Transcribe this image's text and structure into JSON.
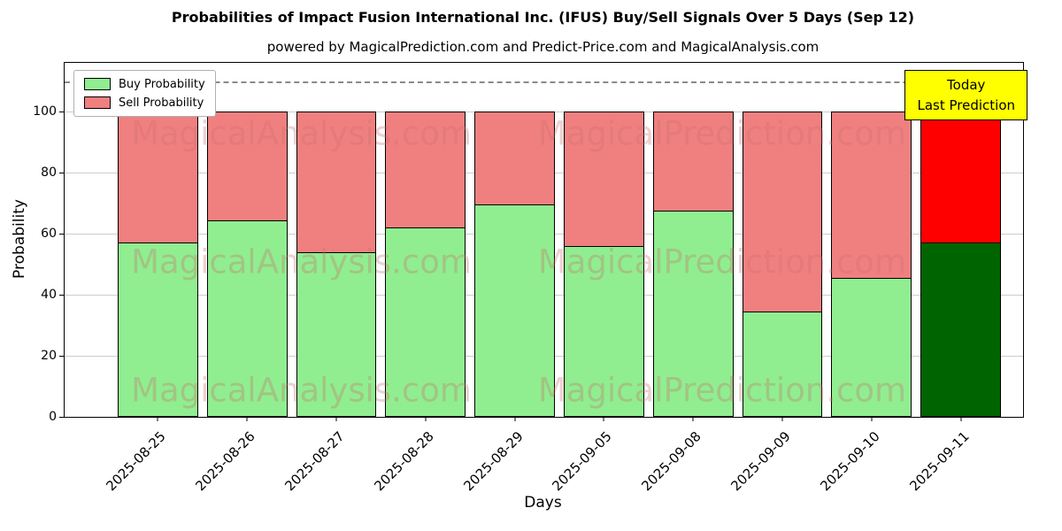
{
  "title": "Probabilities of Impact Fusion International Inc. (IFUS) Buy/Sell Signals Over 5 Days (Sep 12)",
  "subtitle": "powered by MagicalPrediction.com and Predict-Price.com and MagicalAnalysis.com",
  "legend": {
    "buy_label": "Buy Probability",
    "sell_label": "Sell Probability"
  },
  "annotation": {
    "line1": "Today",
    "line2": "Last Prediction",
    "bg": "#ffff00"
  },
  "watermarks": {
    "left": "MagicalAnalysis.com",
    "right": "MagicalPrediction.com"
  },
  "colors": {
    "buy": "#90EE90",
    "sell": "#F08080",
    "buy_today": "#006400",
    "sell_today": "#FF0000",
    "bar_edge": "#000000",
    "grid": "#cccccc",
    "dashed_line": "#8a8a8a"
  },
  "chart_data": {
    "type": "bar",
    "stacked": true,
    "title": "Probabilities of Impact Fusion International Inc. (IFUS) Buy/Sell Signals Over 5 Days (Sep 12)",
    "xlabel": "Days",
    "ylabel": "Probability",
    "categories": [
      "2025-08-25",
      "2025-08-26",
      "2025-08-27",
      "2025-08-28",
      "2025-08-29",
      "2025-09-05",
      "2025-09-08",
      "2025-09-09",
      "2025-09-10",
      "2025-09-11"
    ],
    "series": [
      {
        "name": "Buy Probability",
        "color_key": "buy",
        "values": [
          57,
          64.5,
          54,
          62,
          69.5,
          56,
          67.5,
          34.5,
          45.5,
          57
        ]
      },
      {
        "name": "Sell Probability",
        "color_key": "sell",
        "values": [
          43,
          35.5,
          46,
          38,
          30.5,
          44,
          32.5,
          65.5,
          54.5,
          43
        ]
      }
    ],
    "today_category": "2025-09-11",
    "ylim": [
      0,
      116
    ],
    "yticks": [
      0,
      20,
      40,
      60,
      80,
      100
    ],
    "dashed_hline": 110,
    "grid": true,
    "legend_position": "upper left"
  }
}
